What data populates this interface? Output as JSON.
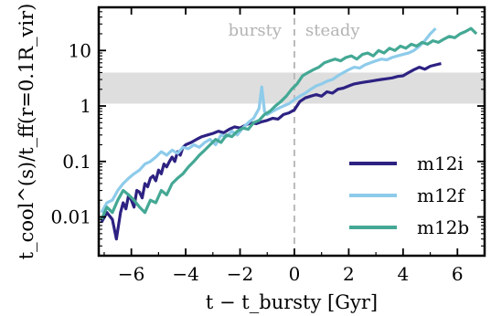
{
  "chart_data": {
    "type": "line",
    "xlabel": "t − t_bursty [Gyr]",
    "ylabel": "t_cool^(s)/t_ff(r=0.1R_vir)",
    "xlim": [
      -7.2,
      7.0
    ],
    "ylim": [
      0.002,
      60
    ],
    "yscale": "log",
    "grid": false,
    "legend_position": "lower-right",
    "x_ticks": [
      -6,
      -4,
      -2,
      0,
      2,
      4,
      6
    ],
    "x_tick_labels": [
      "−6",
      "−4",
      "−2",
      "0",
      "2",
      "4",
      "6"
    ],
    "y_ticks": [
      0.01,
      0.1,
      1,
      10
    ],
    "y_tick_labels": [
      "0.01",
      "0.1",
      "1",
      "10"
    ],
    "shaded_band": {
      "y_range": [
        1.1,
        4.0
      ],
      "color": "#dedede"
    },
    "vline": {
      "x": 0,
      "style": "dashed",
      "color": "#bbbbbb"
    },
    "annotations": {
      "left": "bursty",
      "right": "steady"
    },
    "series": [
      {
        "name": "m12i",
        "color": "#2d2282",
        "x": [
          -7.1,
          -6.9,
          -6.7,
          -6.55,
          -6.4,
          -6.3,
          -6.2,
          -6.1,
          -6.0,
          -5.9,
          -5.8,
          -5.7,
          -5.6,
          -5.5,
          -5.4,
          -5.3,
          -5.2,
          -5.1,
          -5.0,
          -4.9,
          -4.8,
          -4.7,
          -4.6,
          -4.5,
          -4.4,
          -4.3,
          -4.2,
          -4.1,
          -4.0,
          -3.8,
          -3.6,
          -3.4,
          -3.2,
          -3.0,
          -2.8,
          -2.6,
          -2.4,
          -2.2,
          -2.0,
          -1.8,
          -1.6,
          -1.4,
          -1.2,
          -1.0,
          -0.8,
          -0.6,
          -0.4,
          -0.2,
          0.0,
          0.2,
          0.4,
          0.6,
          0.8,
          1.0,
          1.2,
          1.4,
          1.6,
          1.8,
          2.0,
          2.2,
          2.4,
          2.6,
          2.8,
          3.0,
          3.2,
          3.4,
          3.6,
          3.8,
          4.0,
          4.2,
          4.4,
          4.6,
          4.8,
          5.0,
          5.2,
          5.4
        ],
        "values": [
          0.008,
          0.012,
          0.009,
          0.004,
          0.012,
          0.018,
          0.014,
          0.025,
          0.02,
          0.015,
          0.03,
          0.028,
          0.022,
          0.04,
          0.035,
          0.05,
          0.055,
          0.045,
          0.07,
          0.06,
          0.09,
          0.08,
          0.1,
          0.12,
          0.1,
          0.15,
          0.13,
          0.18,
          0.2,
          0.22,
          0.25,
          0.28,
          0.3,
          0.32,
          0.35,
          0.33,
          0.38,
          0.42,
          0.4,
          0.45,
          0.5,
          0.48,
          0.52,
          0.55,
          0.6,
          0.58,
          0.7,
          0.75,
          0.85,
          1.2,
          1.4,
          1.5,
          1.6,
          1.5,
          1.8,
          1.7,
          2.0,
          2.1,
          2.3,
          2.5,
          2.6,
          2.7,
          2.8,
          2.9,
          3.0,
          3.1,
          3.2,
          3.4,
          3.5,
          4.0,
          4.5,
          5.0,
          4.6,
          5.2,
          5.5,
          5.8
        ]
      },
      {
        "name": "m12f",
        "color": "#8ecbea",
        "x": [
          -7.1,
          -6.9,
          -6.7,
          -6.5,
          -6.3,
          -6.1,
          -5.9,
          -5.7,
          -5.5,
          -5.3,
          -5.1,
          -4.9,
          -4.7,
          -4.5,
          -4.3,
          -4.1,
          -3.9,
          -3.7,
          -3.5,
          -3.3,
          -3.1,
          -2.9,
          -2.7,
          -2.5,
          -2.3,
          -2.1,
          -1.9,
          -1.7,
          -1.5,
          -1.3,
          -1.2,
          -1.1,
          -1.0,
          -0.8,
          -0.6,
          -0.4,
          -0.2,
          0.0,
          0.2,
          0.4,
          0.6,
          0.8,
          1.0,
          1.2,
          1.4,
          1.6,
          1.8,
          2.0,
          2.2,
          2.4,
          2.6,
          2.8,
          3.0,
          3.2,
          3.4,
          3.6,
          3.8,
          4.0,
          4.2,
          4.4,
          4.6,
          4.8,
          5.0,
          5.2
        ],
        "values": [
          0.012,
          0.018,
          0.02,
          0.03,
          0.04,
          0.05,
          0.06,
          0.07,
          0.09,
          0.1,
          0.12,
          0.15,
          0.13,
          0.16,
          0.14,
          0.18,
          0.17,
          0.2,
          0.18,
          0.22,
          0.25,
          0.2,
          0.3,
          0.28,
          0.35,
          0.3,
          0.4,
          0.5,
          0.6,
          0.9,
          2.2,
          0.8,
          0.7,
          0.8,
          0.9,
          1.0,
          1.1,
          1.3,
          1.5,
          1.7,
          2.0,
          2.3,
          2.5,
          2.8,
          3.0,
          3.5,
          4.0,
          4.5,
          5.0,
          4.8,
          5.5,
          6.0,
          6.5,
          7.0,
          6.8,
          7.5,
          8.0,
          8.5,
          9.0,
          10.0,
          12.0,
          15.0,
          20.0,
          25.0
        ]
      },
      {
        "name": "m12b",
        "color": "#44a894",
        "x": [
          -7.1,
          -6.9,
          -6.7,
          -6.5,
          -6.3,
          -6.1,
          -5.9,
          -5.7,
          -5.5,
          -5.3,
          -5.1,
          -4.9,
          -4.7,
          -4.5,
          -4.3,
          -4.1,
          -3.9,
          -3.7,
          -3.5,
          -3.3,
          -3.1,
          -2.9,
          -2.7,
          -2.5,
          -2.3,
          -2.1,
          -1.9,
          -1.7,
          -1.5,
          -1.3,
          -1.1,
          -0.9,
          -0.7,
          -0.5,
          -0.3,
          -0.1,
          0.1,
          0.3,
          0.5,
          0.7,
          0.9,
          1.1,
          1.3,
          1.5,
          1.7,
          1.9,
          2.1,
          2.3,
          2.5,
          2.7,
          2.9,
          3.1,
          3.3,
          3.5,
          3.7,
          3.9,
          4.1,
          4.3,
          4.5,
          4.7,
          4.9,
          5.1,
          5.3,
          5.5,
          5.7,
          5.9,
          6.1,
          6.3,
          6.5,
          6.7
        ],
        "values": [
          0.009,
          0.015,
          0.012,
          0.02,
          0.03,
          0.025,
          0.02,
          0.015,
          0.012,
          0.02,
          0.018,
          0.03,
          0.025,
          0.04,
          0.05,
          0.06,
          0.08,
          0.1,
          0.13,
          0.16,
          0.2,
          0.25,
          0.22,
          0.3,
          0.28,
          0.35,
          0.4,
          0.38,
          0.5,
          0.55,
          0.7,
          0.8,
          1.0,
          1.2,
          1.5,
          2.0,
          2.5,
          3.5,
          4.0,
          4.5,
          5.0,
          6.0,
          6.5,
          7.0,
          6.5,
          7.5,
          8.0,
          7.0,
          8.5,
          9.0,
          8.0,
          10.0,
          9.0,
          11.0,
          10.0,
          12.0,
          11.0,
          13.0,
          12.0,
          14.0,
          13.0,
          15.0,
          14.0,
          16.0,
          18.0,
          17.0,
          20.0,
          22.0,
          25.0,
          20.0
        ]
      }
    ]
  }
}
